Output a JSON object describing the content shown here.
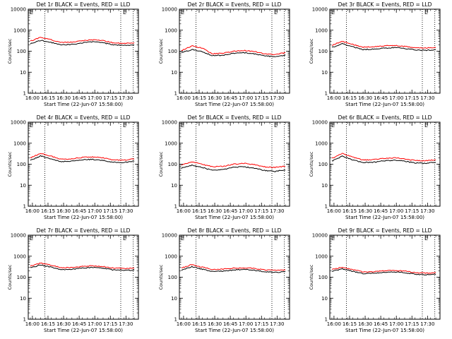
{
  "chart_data": [
    {
      "type": "line",
      "title": "Det 1r BLACK = Events, RED = LLD",
      "marker": "E",
      "xlabel": "Start Time (22-Jun-07 15:58:00)",
      "ylabel": "Counts/sec",
      "x_ticks": [
        "16:00",
        "16:15",
        "16:30",
        "16:45",
        "17:00",
        "17:15",
        "17:30"
      ],
      "y_ticks": [
        "1",
        "10",
        "100",
        "1000",
        "10000"
      ],
      "y_scale": "log",
      "ylim": [
        1,
        10000
      ],
      "x_minutes": [
        0,
        10,
        20,
        30,
        40,
        50,
        60,
        70,
        80,
        90,
        100
      ],
      "series": [
        {
          "color": "#000000",
          "values": [
            230,
            330,
            260,
            200,
            210,
            250,
            280,
            250,
            200,
            190,
            200
          ]
        },
        {
          "color": "#ff0000",
          "values": [
            300,
            460,
            350,
            260,
            270,
            310,
            350,
            320,
            250,
            230,
            250
          ]
        }
      ],
      "vlines_minutes": [
        14,
        87,
        99
      ]
    },
    {
      "type": "line",
      "title": "Det 2r BLACK = Events, RED = LLD",
      "marker": "E",
      "xlabel": "Start Time (22-Jun-07 15:58:00)",
      "ylabel": "Counts/sec",
      "x_ticks": [
        "16:00",
        "16:15",
        "16:30",
        "16:45",
        "17:00",
        "17:15",
        "17:30"
      ],
      "y_ticks": [
        "1",
        "10",
        "100",
        "1000",
        "10000"
      ],
      "y_scale": "log",
      "ylim": [
        1,
        10000
      ],
      "x_minutes": [
        0,
        10,
        20,
        30,
        40,
        50,
        60,
        70,
        80,
        90,
        100
      ],
      "series": [
        {
          "color": "#000000",
          "values": [
            85,
            120,
            95,
            60,
            65,
            80,
            85,
            75,
            60,
            55,
            65
          ]
        },
        {
          "color": "#ff0000",
          "values": [
            105,
            180,
            140,
            75,
            80,
            100,
            110,
            95,
            75,
            70,
            85
          ]
        }
      ],
      "vlines_minutes": [
        14,
        87,
        99
      ]
    },
    {
      "type": "line",
      "title": "Det 3r BLACK = Events, RED = LLD",
      "marker": "E",
      "xlabel": "Start Time (22-Jun-07 15:58:00)",
      "ylabel": "Counts/sec",
      "x_ticks": [
        "16:00",
        "16:15",
        "16:30",
        "16:45",
        "17:00",
        "17:15",
        "17:30"
      ],
      "y_ticks": [
        "1",
        "10",
        "100",
        "1000",
        "10000"
      ],
      "y_scale": "log",
      "ylim": [
        1,
        10000
      ],
      "x_minutes": [
        0,
        10,
        20,
        30,
        40,
        50,
        60,
        70,
        80,
        90,
        100
      ],
      "series": [
        {
          "color": "#000000",
          "values": [
            150,
            230,
            160,
            120,
            125,
            140,
            150,
            135,
            115,
            110,
            120
          ]
        },
        {
          "color": "#ff0000",
          "values": [
            190,
            300,
            210,
            155,
            160,
            180,
            190,
            170,
            145,
            140,
            150
          ]
        }
      ],
      "vlines_minutes": [
        14,
        87,
        99
      ]
    },
    {
      "type": "line",
      "title": "Det 4r BLACK = Events, RED = LLD",
      "marker": "E",
      "xlabel": "Start Time (22-Jun-07 15:58:00)",
      "ylabel": "Counts/sec",
      "x_ticks": [
        "16:00",
        "16:15",
        "16:30",
        "16:45",
        "17:00",
        "17:15",
        "17:30"
      ],
      "y_ticks": [
        "1",
        "10",
        "100",
        "1000",
        "10000"
      ],
      "y_scale": "log",
      "ylim": [
        1,
        10000
      ],
      "x_minutes": [
        0,
        10,
        20,
        30,
        40,
        50,
        60,
        70,
        80,
        90,
        100
      ],
      "series": [
        {
          "color": "#000000",
          "values": [
            150,
            250,
            180,
            130,
            140,
            160,
            170,
            150,
            125,
            120,
            140
          ]
        },
        {
          "color": "#ff0000",
          "values": [
            200,
            330,
            240,
            170,
            180,
            210,
            220,
            200,
            160,
            155,
            180
          ]
        }
      ],
      "vlines_minutes": [
        14,
        87,
        99
      ]
    },
    {
      "type": "line",
      "title": "Det 5r BLACK = Events, RED = LLD",
      "marker": "E",
      "xlabel": "Start Time (22-Jun-07 15:58:00)",
      "ylabel": "Counts/sec",
      "x_ticks": [
        "16:00",
        "16:15",
        "16:30",
        "16:45",
        "17:00",
        "17:15",
        "17:30"
      ],
      "y_ticks": [
        "1",
        "10",
        "100",
        "1000",
        "10000"
      ],
      "y_scale": "log",
      "ylim": [
        1,
        10000
      ],
      "x_minutes": [
        0,
        10,
        20,
        30,
        40,
        50,
        60,
        70,
        80,
        90,
        100
      ],
      "series": [
        {
          "color": "#000000",
          "values": [
            65,
            90,
            70,
            50,
            55,
            70,
            75,
            65,
            50,
            45,
            55
          ]
        },
        {
          "color": "#ff0000",
          "values": [
            90,
            130,
            100,
            75,
            80,
            100,
            110,
            95,
            75,
            70,
            80
          ]
        }
      ],
      "vlines_minutes": [
        14,
        87,
        99
      ]
    },
    {
      "type": "line",
      "title": "Det 6r BLACK = Events, RED = LLD",
      "marker": "E",
      "xlabel": "Start Time (22-Jun-07 15:58:00)",
      "ylabel": "Counts/sec",
      "x_ticks": [
        "16:00",
        "16:15",
        "16:30",
        "16:45",
        "17:00",
        "17:15",
        "17:30"
      ],
      "y_ticks": [
        "1",
        "10",
        "100",
        "1000",
        "10000"
      ],
      "y_scale": "log",
      "ylim": [
        1,
        10000
      ],
      "x_minutes": [
        0,
        10,
        20,
        30,
        40,
        50,
        60,
        70,
        80,
        90,
        100
      ],
      "series": [
        {
          "color": "#000000",
          "values": [
            140,
            240,
            160,
            120,
            125,
            145,
            155,
            140,
            115,
            110,
            125
          ]
        },
        {
          "color": "#ff0000",
          "values": [
            190,
            320,
            220,
            160,
            165,
            190,
            200,
            180,
            150,
            145,
            165
          ]
        }
      ],
      "vlines_minutes": [
        14,
        87,
        99
      ]
    },
    {
      "type": "line",
      "title": "Det 7r BLACK = Events, RED = LLD",
      "marker": "E",
      "xlabel": "Start Time (22-Jun-07 15:58:00)",
      "ylabel": "Counts/sec",
      "x_ticks": [
        "16:00",
        "16:15",
        "16:30",
        "16:45",
        "17:00",
        "17:15",
        "17:30"
      ],
      "y_ticks": [
        "1",
        "10",
        "100",
        "1000",
        "10000"
      ],
      "y_scale": "log",
      "ylim": [
        1,
        10000
      ],
      "x_minutes": [
        0,
        10,
        20,
        30,
        40,
        50,
        60,
        70,
        80,
        90,
        100
      ],
      "series": [
        {
          "color": "#000000",
          "values": [
            280,
            380,
            300,
            230,
            240,
            270,
            290,
            270,
            220,
            210,
            220
          ]
        },
        {
          "color": "#ff0000",
          "values": [
            340,
            470,
            370,
            280,
            290,
            330,
            350,
            320,
            270,
            260,
            270
          ]
        }
      ],
      "vlines_minutes": [
        14,
        87,
        99
      ]
    },
    {
      "type": "line",
      "title": "Det 8r BLACK = Events, RED = LLD",
      "marker": "E",
      "xlabel": "Start Time (22-Jun-07 15:58:00)",
      "ylabel": "Counts/sec",
      "x_ticks": [
        "16:00",
        "16:15",
        "16:30",
        "16:45",
        "17:00",
        "17:15",
        "17:30"
      ],
      "y_ticks": [
        "1",
        "10",
        "100",
        "1000",
        "10000"
      ],
      "y_scale": "log",
      "ylim": [
        1,
        10000
      ],
      "x_minutes": [
        0,
        10,
        20,
        30,
        40,
        50,
        60,
        70,
        80,
        90,
        100
      ],
      "series": [
        {
          "color": "#000000",
          "values": [
            220,
            320,
            240,
            190,
            195,
            220,
            235,
            215,
            180,
            170,
            185
          ]
        },
        {
          "color": "#ff0000",
          "values": [
            270,
            400,
            300,
            230,
            240,
            270,
            285,
            260,
            220,
            210,
            225
          ]
        }
      ],
      "vlines_minutes": [
        14,
        87,
        99
      ]
    },
    {
      "type": "line",
      "title": "Det 9r BLACK = Events, RED = LLD",
      "marker": "E",
      "xlabel": "Start Time (22-Jun-07 15:58:00)",
      "ylabel": "Counts/sec",
      "x_ticks": [
        "16:00",
        "16:15",
        "16:30",
        "16:45",
        "17:00",
        "17:15",
        "17:30"
      ],
      "y_ticks": [
        "1",
        "10",
        "100",
        "1000",
        "10000"
      ],
      "y_scale": "log",
      "ylim": [
        1,
        10000
      ],
      "x_minutes": [
        0,
        10,
        20,
        30,
        40,
        50,
        60,
        70,
        80,
        90,
        100
      ],
      "series": [
        {
          "color": "#000000",
          "values": [
            190,
            250,
            190,
            150,
            155,
            170,
            180,
            165,
            140,
            130,
            140
          ]
        },
        {
          "color": "#ff0000",
          "values": [
            230,
            300,
            230,
            180,
            185,
            200,
            210,
            195,
            165,
            155,
            165
          ]
        }
      ],
      "vlines_minutes": [
        14,
        87,
        99
      ]
    }
  ]
}
